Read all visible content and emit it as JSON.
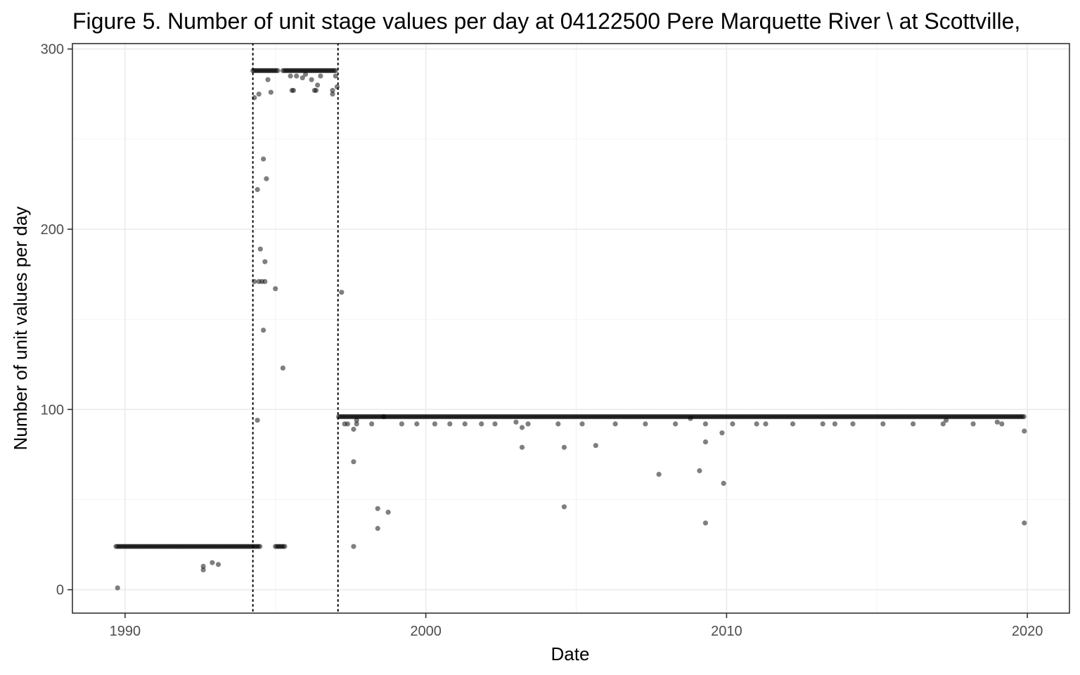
{
  "chart_data": {
    "type": "scatter",
    "title": "Figure 5. Number of unit stage values per day at 04122500 Pere Marquette River \\ at Scottville,",
    "xlabel": "Date",
    "ylabel": "Number of unit values per day",
    "xlim": [
      1988.25,
      2021.4
    ],
    "ylim": [
      -13,
      303
    ],
    "x_ticks": [
      1990,
      2000,
      2010,
      2020
    ],
    "x_tick_labels": [
      "1990",
      "2000",
      "2010",
      "2020"
    ],
    "y_ticks": [
      0,
      100,
      200,
      300
    ],
    "y_tick_labels": [
      "0",
      "100",
      "200",
      "300"
    ],
    "grid": true,
    "legend": "none",
    "point_color": "#000000",
    "vertical_lines": [
      {
        "x": 1994.25,
        "style": "dotted"
      },
      {
        "x": 1997.08,
        "style": "dotted"
      }
    ],
    "dense_runs": [
      {
        "x_start": 1989.7,
        "x_end": 1994.5,
        "y": 24
      },
      {
        "x_start": 1995.0,
        "x_end": 1995.35,
        "y": 24
      },
      {
        "x_start": 1994.25,
        "x_end": 1995.1,
        "y": 288
      },
      {
        "x_start": 1995.25,
        "x_end": 1997.05,
        "y": 288
      },
      {
        "x_start": 1997.1,
        "x_end": 2019.9,
        "y": 96
      }
    ],
    "points": [
      [
        1989.75,
        1
      ],
      [
        1992.6,
        11
      ],
      [
        1992.6,
        13
      ],
      [
        1992.9,
        15
      ],
      [
        1993.1,
        14
      ],
      [
        1994.3,
        273
      ],
      [
        1994.45,
        275
      ],
      [
        1994.75,
        283
      ],
      [
        1994.85,
        276
      ],
      [
        1994.4,
        94
      ],
      [
        1994.4,
        222
      ],
      [
        1994.6,
        239
      ],
      [
        1994.7,
        228
      ],
      [
        1994.5,
        189
      ],
      [
        1994.65,
        182
      ],
      [
        1994.3,
        171
      ],
      [
        1994.45,
        171
      ],
      [
        1994.55,
        171
      ],
      [
        1994.65,
        171
      ],
      [
        1994.6,
        144
      ],
      [
        1995.0,
        167
      ],
      [
        1995.25,
        123
      ],
      [
        1995.5,
        285
      ],
      [
        1995.7,
        285
      ],
      [
        1995.9,
        284
      ],
      [
        1996.0,
        286
      ],
      [
        1995.55,
        277
      ],
      [
        1995.6,
        277
      ],
      [
        1996.2,
        283
      ],
      [
        1996.3,
        277
      ],
      [
        1996.4,
        280
      ],
      [
        1996.35,
        277
      ],
      [
        1996.5,
        285
      ],
      [
        1996.9,
        275
      ],
      [
        1996.9,
        277
      ],
      [
        1997.05,
        279
      ],
      [
        1997.0,
        285
      ],
      [
        1997.2,
        165
      ],
      [
        1997.3,
        92
      ],
      [
        1997.4,
        92
      ],
      [
        1997.6,
        89
      ],
      [
        1997.6,
        71
      ],
      [
        1997.6,
        24
      ],
      [
        1997.7,
        92
      ],
      [
        1997.7,
        94
      ],
      [
        1998.2,
        92
      ],
      [
        1998.4,
        45
      ],
      [
        1998.4,
        34
      ],
      [
        1998.75,
        43
      ],
      [
        1998.6,
        96
      ],
      [
        1999.2,
        92
      ],
      [
        1999.7,
        92
      ],
      [
        2000.3,
        92
      ],
      [
        2000.8,
        92
      ],
      [
        2001.3,
        92
      ],
      [
        2001.85,
        92
      ],
      [
        2002.3,
        92
      ],
      [
        2003.0,
        93
      ],
      [
        2003.2,
        90
      ],
      [
        2003.2,
        79
      ],
      [
        2003.4,
        92
      ],
      [
        2004.4,
        92
      ],
      [
        2004.6,
        79
      ],
      [
        2004.6,
        46
      ],
      [
        2005.2,
        92
      ],
      [
        2005.65,
        80
      ],
      [
        2006.3,
        92
      ],
      [
        2007.3,
        92
      ],
      [
        2007.75,
        64
      ],
      [
        2008.3,
        92
      ],
      [
        2008.8,
        95
      ],
      [
        2009.1,
        66
      ],
      [
        2009.3,
        92
      ],
      [
        2009.3,
        82
      ],
      [
        2009.3,
        37
      ],
      [
        2009.85,
        87
      ],
      [
        2009.9,
        59
      ],
      [
        2010.2,
        92
      ],
      [
        2011.0,
        92
      ],
      [
        2011.3,
        92
      ],
      [
        2012.2,
        92
      ],
      [
        2013.2,
        92
      ],
      [
        2013.6,
        92
      ],
      [
        2014.2,
        92
      ],
      [
        2015.2,
        92
      ],
      [
        2016.2,
        92
      ],
      [
        2017.2,
        92
      ],
      [
        2017.3,
        94
      ],
      [
        2018.2,
        92
      ],
      [
        2019.0,
        93
      ],
      [
        2019.15,
        92
      ],
      [
        2019.9,
        88
      ],
      [
        2019.9,
        37
      ]
    ]
  }
}
